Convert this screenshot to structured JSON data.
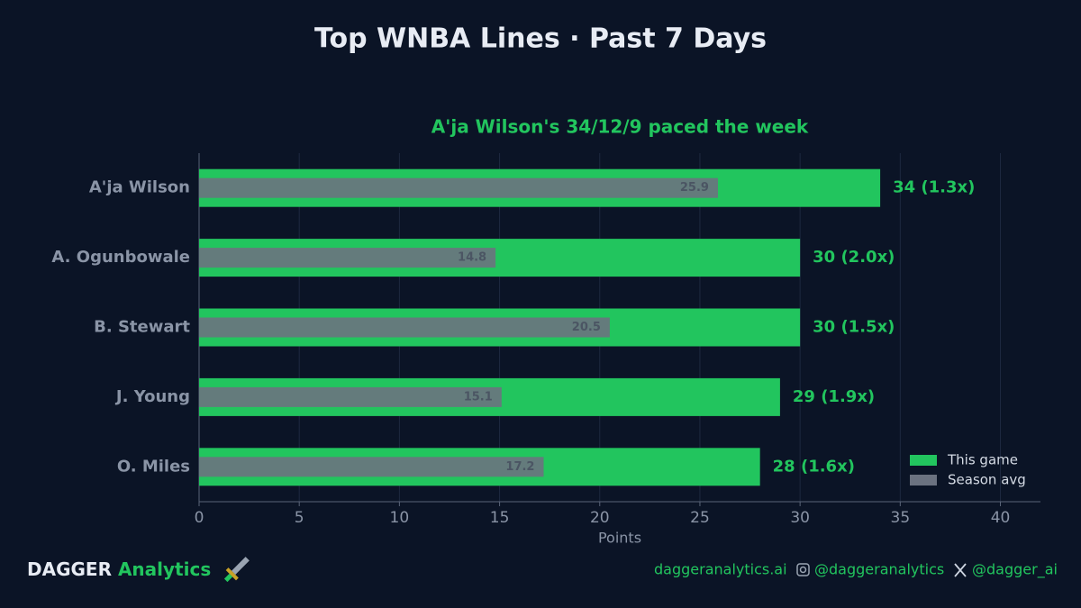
{
  "chart_data": {
    "type": "bar",
    "orientation": "horizontal",
    "title": "Top WNBA Lines · Past 7 Days",
    "subtitle": "A'ja Wilson's 34/12/9 paced the week",
    "xlabel": "Points",
    "categories": [
      "A'ja Wilson",
      "A. Ogunbowale",
      "B. Stewart",
      "J. Young",
      "O. Miles"
    ],
    "series": [
      {
        "name": "This game",
        "color": "#22c55e",
        "values": [
          34,
          30,
          30,
          29,
          28
        ],
        "value_labels": [
          "34  (1.3x)",
          "30  (2.0x)",
          "30  (1.5x)",
          "29  (1.9x)",
          "28  (1.6x)"
        ]
      },
      {
        "name": "Season avg",
        "color": "#6b7280",
        "values": [
          25.9,
          14.8,
          20.5,
          15.1,
          17.2
        ]
      }
    ],
    "xlim": [
      0,
      42
    ],
    "xticks": [
      0,
      5,
      10,
      15,
      20,
      25,
      30,
      35,
      40
    ],
    "grid": true,
    "legend": "lower right"
  },
  "footer": {
    "brand": "DAGGER",
    "brand_accent": "Analytics",
    "website": "daggeranalytics.ai",
    "instagram": "@daggeranalytics",
    "x_handle": "@dagger_ai"
  }
}
